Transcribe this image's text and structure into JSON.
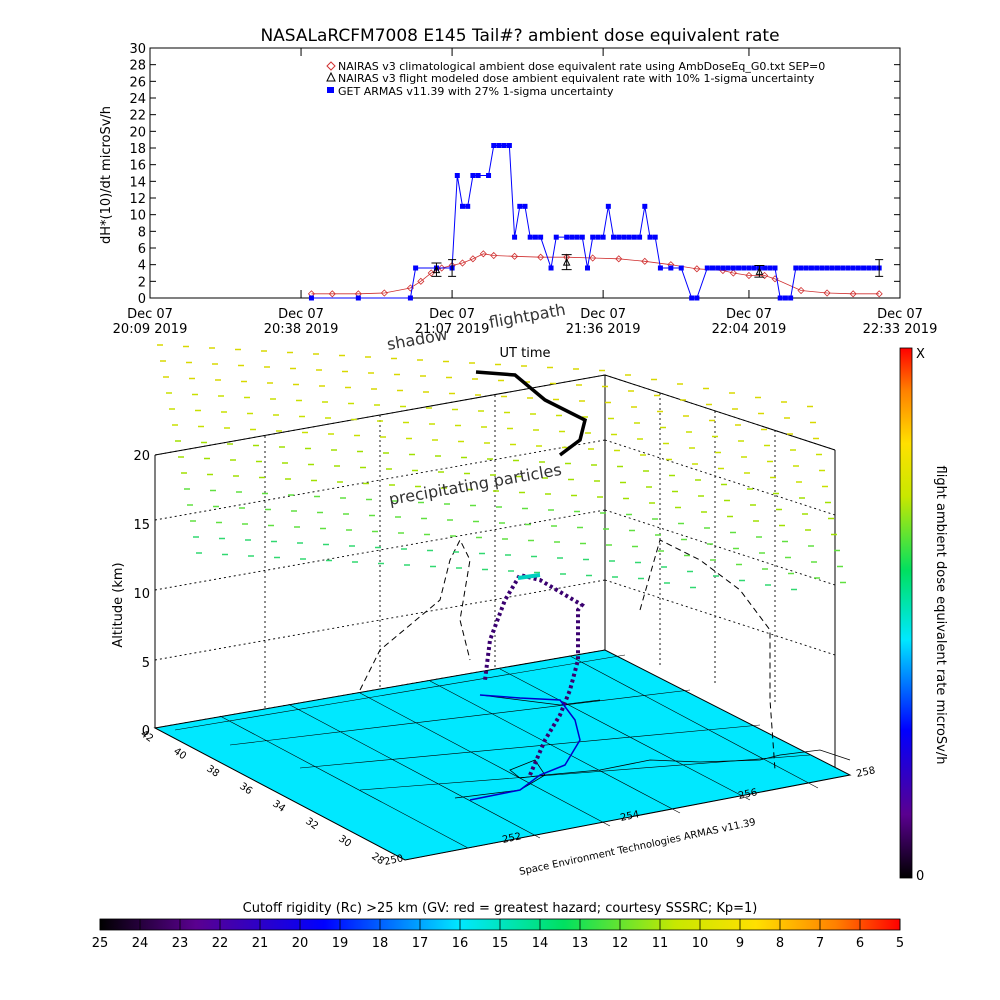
{
  "title": "NASALaRCFM7008  E145 Tail#? ambient dose equivalent rate",
  "chart_data": [
    {
      "type": "line",
      "title": "NASALaRCFM7008  E145 Tail#? ambient dose equivalent rate",
      "ylabel": "dH*(10)/dt microSv/h",
      "xlabel": "UT time",
      "ylim": [
        0,
        30
      ],
      "yticks": [
        "0",
        "2",
        "4",
        "6",
        "8",
        "10",
        "12",
        "14",
        "16",
        "18",
        "20",
        "22",
        "24",
        "26",
        "28",
        "30"
      ],
      "xlim_minutes_after_2009": [
        0,
        144
      ],
      "xticks": [
        {
          "line1": "Dec 07",
          "line2": "20:09  2019",
          "minute": 0
        },
        {
          "line1": "Dec 07",
          "line2": "20:38  2019",
          "minute": 29
        },
        {
          "line1": "Dec 07",
          "line2": "21:07  2019",
          "minute": 58
        },
        {
          "line1": "Dec 07",
          "line2": "21:36  2019",
          "minute": 87
        },
        {
          "line1": "Dec 07",
          "line2": "22:04  2019",
          "minute": 115
        },
        {
          "line1": "Dec 07",
          "line2": "22:33  2019",
          "minute": 144
        }
      ],
      "legend_position": "top-right",
      "series": [
        {
          "name": "NAIRAS v3 climatological ambient dose equivalent rate using AmbDoseEq_G0.txt SEP=0",
          "color": "#d03030",
          "marker": "diamond",
          "x": [
            31,
            35,
            40,
            45,
            50,
            52,
            54,
            56,
            58,
            60,
            62,
            64,
            66,
            70,
            75,
            80,
            85,
            90,
            95,
            100,
            105,
            110,
            112,
            115,
            118,
            120,
            125,
            130,
            135,
            140
          ],
          "y": [
            0.5,
            0.5,
            0.5,
            0.6,
            1.2,
            2,
            3,
            3.6,
            3.9,
            4.2,
            4.7,
            5.3,
            5.1,
            5,
            4.9,
            4.9,
            4.8,
            4.7,
            4.4,
            4,
            3.5,
            3.3,
            3,
            2.7,
            2.7,
            2.3,
            0.9,
            0.6,
            0.5,
            0.5
          ]
        },
        {
          "name": "NAIRAS v3 flight modeled dose ambient equivalent rate with 10% 1-sigma uncertainty",
          "color": "#000000",
          "marker": "triangle",
          "x": [
            55,
            80,
            117
          ],
          "y": [
            3.4,
            4.3,
            3.2
          ],
          "err": [
            0.8,
            0.9,
            0.7
          ]
        },
        {
          "name": "GET ARMAS v11.39 with 27% 1-sigma uncertainty",
          "color": "#0000ff",
          "marker": "square",
          "x": [
            31,
            40,
            50,
            51,
            55,
            58,
            59,
            60,
            61,
            62,
            63,
            65,
            66,
            67,
            68,
            69,
            70,
            71,
            72,
            73,
            74,
            75,
            77,
            78,
            80,
            81,
            82,
            83,
            84,
            85,
            86,
            87,
            88,
            89,
            90,
            91,
            92,
            93,
            94,
            95,
            96,
            97,
            98,
            100,
            102,
            104,
            105,
            107,
            108,
            109,
            110,
            111,
            112,
            113,
            114,
            115,
            116,
            117,
            118,
            119,
            120,
            121,
            122,
            123,
            124,
            125,
            126,
            127,
            128,
            129,
            130,
            131,
            132,
            133,
            134,
            135,
            136,
            137,
            138,
            139,
            140
          ],
          "y": [
            0,
            0,
            0,
            3.6,
            3.6,
            3.6,
            14.7,
            11,
            11,
            14.7,
            14.7,
            14.7,
            18.3,
            18.3,
            18.3,
            18.3,
            7.3,
            11,
            11,
            7.3,
            7.3,
            7.3,
            3.6,
            7.3,
            7.3,
            7.3,
            7.3,
            7.3,
            3.6,
            7.3,
            7.3,
            7.3,
            11,
            7.3,
            7.3,
            7.3,
            7.3,
            7.3,
            7.3,
            11,
            7.3,
            7.3,
            3.6,
            3.6,
            3.6,
            0,
            0,
            3.6,
            3.6,
            3.6,
            3.6,
            3.6,
            3.6,
            3.6,
            3.6,
            3.6,
            3.6,
            3.6,
            3.6,
            3.6,
            3.6,
            0,
            0,
            0,
            3.6,
            3.6,
            3.6,
            3.6,
            3.6,
            3.6,
            3.6,
            3.6,
            3.6,
            3.6,
            3.6,
            3.6,
            3.6,
            3.6,
            3.6,
            3.6,
            3.6
          ],
          "err_at": [
            {
              "x": 58,
              "y": 3.6,
              "err": 1
            },
            {
              "x": 140,
              "y": 3.6,
              "err": 1
            }
          ]
        }
      ]
    },
    {
      "type": "scatter",
      "subtype": "3d-flight-track",
      "zlabel": "Altitude (km)",
      "zticks": [
        "0",
        "5",
        "10",
        "15",
        "20"
      ],
      "latitude_ticks": [
        "42",
        "40",
        "38",
        "36",
        "34",
        "32",
        "30",
        "28"
      ],
      "longitude_ticks": [
        "250",
        "252",
        "254",
        "256",
        "258"
      ],
      "credit": "Space Environment Technologies ARMAS v11.39",
      "annotations": [
        "shadow",
        "flightpath",
        "precipitating particles"
      ],
      "colorbar": {
        "label": "flight ambient dose equivalent rate microSv/h",
        "top_label": "X",
        "bottom_label": "0"
      }
    },
    {
      "type": "heatmap",
      "subtype": "colorbar",
      "label": "Cutoff rigidity (Rc) >25 km (GV: red = greatest hazard; courtesy SSSRC; Kp=1)",
      "ticks": [
        "25",
        "24",
        "23",
        "22",
        "21",
        "20",
        "19",
        "18",
        "17",
        "16",
        "15",
        "14",
        "13",
        "12",
        "11",
        "10",
        "9",
        "8",
        "7",
        "6",
        "5"
      ]
    }
  ]
}
